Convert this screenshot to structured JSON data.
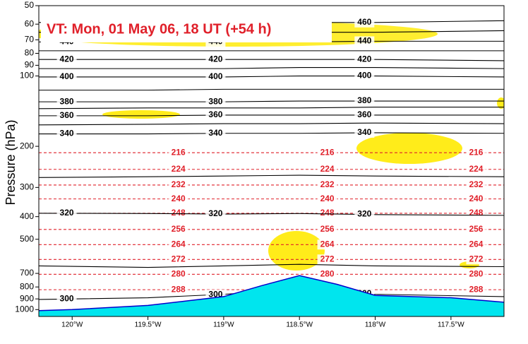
{
  "chart_data": {
    "type": "contour",
    "title": "VT:  Mon, 01 May 06, 18 UT (+54 h)",
    "y_label": "Pressure (hPa)",
    "log_y": true,
    "xlim": [
      -120.22,
      -117.15
    ],
    "ylim": [
      1070,
      50
    ],
    "xticks": [
      {
        "value": -120,
        "label": "120°W"
      },
      {
        "value": -119.5,
        "label": "119.5°W"
      },
      {
        "value": -119,
        "label": "119°W"
      },
      {
        "value": -118.5,
        "label": "118.5°W"
      },
      {
        "value": -118,
        "label": "118°W"
      },
      {
        "value": -117.5,
        "label": "117.5°W"
      }
    ],
    "yticks": [
      50,
      60,
      70,
      80,
      90,
      100,
      200,
      300,
      400,
      500,
      700,
      800,
      900,
      1000
    ],
    "x": [
      -120.22,
      -119.5,
      -119,
      -118.5,
      -118,
      -117.15
    ],
    "theta": {
      "color": "#000000",
      "contours": [
        {
          "level": 300,
          "p": [
            905,
            890,
            860,
            820,
            860,
            880
          ]
        },
        {
          "level": 310,
          "p": [
            650,
            660,
            650,
            640,
            650,
            655
          ]
        },
        {
          "level": 320,
          "p": [
            387,
            388,
            390,
            388,
            392,
            395
          ]
        },
        {
          "level": 330,
          "p": [
            272,
            270,
            268,
            266,
            268,
            270
          ]
        },
        {
          "level": 340,
          "p": [
            177,
            177,
            176,
            176,
            175,
            176
          ]
        },
        {
          "level": 350,
          "p": [
            162,
            161,
            160,
            160,
            159,
            160
          ]
        },
        {
          "level": 360,
          "p": [
            148,
            148,
            147,
            147,
            147,
            147
          ]
        },
        {
          "level": 370,
          "p": [
            138,
            137,
            137,
            137,
            136,
            136
          ]
        },
        {
          "level": 380,
          "p": [
            129,
            129,
            129,
            128,
            128,
            128
          ]
        },
        {
          "level": 390,
          "p": [
            115,
            115,
            114,
            114,
            114,
            114
          ]
        },
        {
          "level": 400,
          "p": [
            101,
            101,
            101,
            100,
            100,
            101
          ]
        },
        {
          "level": 410,
          "p": [
            93,
            93,
            93,
            92,
            92,
            93
          ]
        },
        {
          "level": 420,
          "p": [
            85,
            85,
            85,
            85,
            85,
            86
          ]
        },
        {
          "level": 430,
          "p": [
            78,
            78,
            78,
            78,
            78,
            78
          ]
        },
        {
          "level": 440,
          "p": [
            71.5,
            71.5,
            71.5,
            71.5,
            71,
            71
          ]
        },
        {
          "level": 450,
          "p": [
            65,
            65,
            65,
            65,
            65,
            64
          ]
        },
        {
          "level": 460,
          "p": [
            59,
            59,
            59,
            59,
            59,
            58
          ]
        }
      ]
    },
    "temperature": {
      "color": "#e0202a",
      "contours": [
        {
          "level": 216,
          "p": [
            213,
            213,
            213,
            213,
            213,
            213
          ]
        },
        {
          "level": 224,
          "p": [
            251,
            251,
            251,
            251,
            251,
            251
          ]
        },
        {
          "level": 232,
          "p": [
            293,
            293,
            293,
            293,
            293,
            293
          ]
        },
        {
          "level": 240,
          "p": [
            336,
            336,
            336,
            336,
            336,
            336
          ]
        },
        {
          "level": 248,
          "p": [
            387,
            387,
            387,
            387,
            387,
            387
          ]
        },
        {
          "level": 256,
          "p": [
            454,
            454,
            454,
            454,
            454,
            454
          ]
        },
        {
          "level": 264,
          "p": [
            527,
            527,
            527,
            527,
            527,
            527
          ]
        },
        {
          "level": 272,
          "p": [
            610,
            610,
            610,
            610,
            610,
            610
          ]
        },
        {
          "level": 280,
          "p": [
            706,
            706,
            706,
            706,
            706,
            706
          ]
        },
        {
          "level": 288,
          "p": [
            822,
            822,
            822,
            822,
            822,
            822
          ]
        }
      ]
    },
    "terrain": {
      "color": "#00e5ee",
      "x": [
        -120.22,
        -120,
        -119.5,
        -119,
        -118.75,
        -118.5,
        -118.25,
        -118,
        -117.5,
        -117.15
      ],
      "p": [
        1010,
        1000,
        960,
        880,
        790,
        715,
        780,
        870,
        890,
        930
      ]
    }
  }
}
